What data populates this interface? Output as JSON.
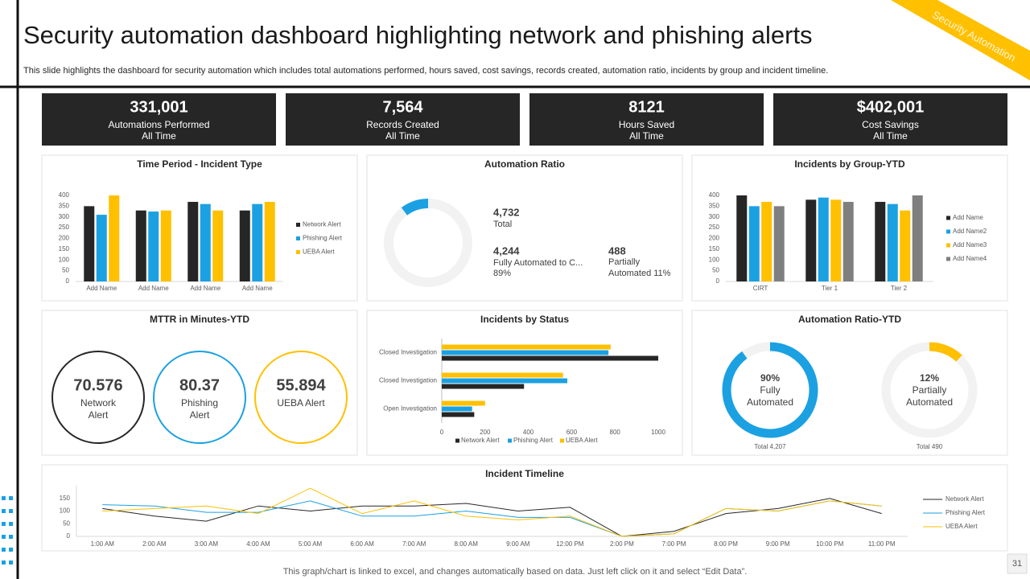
{
  "header": {
    "title": "Security automation dashboard highlighting network and phishing alerts",
    "subtitle": "This slide highlights the dashboard for security automation which includes total automations performed, hours saved, cost savings, records created, automation ratio, incidents by group and incident timeline.",
    "tag": "Security Automation"
  },
  "kpis": [
    {
      "value": "331,001",
      "label": "Automations Performed",
      "period": "All Time"
    },
    {
      "value": "7,564",
      "label": "Records Created",
      "period": "All Time"
    },
    {
      "value": "8121",
      "label": "Hours Saved",
      "period": "All Time"
    },
    {
      "value": "$402,001",
      "label": "Cost Savings",
      "period": "All Time"
    }
  ],
  "chart_data": [
    {
      "type": "bar",
      "title": "Time Period - Incident Type",
      "categories": [
        "Add Name",
        "Add Name",
        "Add Name",
        "Add Name"
      ],
      "series": [
        {
          "name": "Network Alert",
          "color": "#262626",
          "values": [
            350,
            330,
            370,
            330
          ]
        },
        {
          "name": "Phishing Alert",
          "color": "#1ba1e2",
          "values": [
            310,
            325,
            360,
            360
          ]
        },
        {
          "name": "UEBA Alert",
          "color": "#ffc000",
          "values": [
            400,
            330,
            330,
            370
          ]
        }
      ],
      "ylim": [
        0,
        400
      ],
      "yticks": [
        0,
        50,
        100,
        150,
        200,
        250,
        300,
        350,
        400
      ],
      "legend": "right"
    },
    {
      "type": "donut",
      "title": "Automation Ratio",
      "total": {
        "value": 4732,
        "label": "4,732"
      },
      "total_caption": "Total",
      "categories": [
        "Fully Automated to C...",
        "Partially Automated 11%"
      ],
      "values": [
        4244,
        488
      ],
      "value_labels": [
        "4,244",
        "488"
      ],
      "share_label": "89%",
      "colors": [
        "#f2f2f2",
        "#1ba1e2"
      ]
    },
    {
      "type": "bar",
      "title": "Incidents by Group-YTD",
      "categories": [
        "CIRT",
        "Tier 1",
        "Tier 2"
      ],
      "series": [
        {
          "name": "Add Name",
          "color": "#262626",
          "values": [
            400,
            380,
            370
          ]
        },
        {
          "name": "Add Name2",
          "color": "#1ba1e2",
          "values": [
            350,
            390,
            360
          ]
        },
        {
          "name": "Add Name3",
          "color": "#ffc000",
          "values": [
            370,
            380,
            330
          ]
        },
        {
          "name": "Add Name4",
          "color": "#7f7f7f",
          "values": [
            350,
            370,
            400
          ]
        }
      ],
      "ylim": [
        0,
        400
      ],
      "yticks": [
        0,
        50,
        100,
        150,
        200,
        250,
        300,
        350,
        400
      ],
      "legend": "right"
    },
    {
      "type": "circles",
      "title": "MTTR in Minutes-YTD",
      "categories": [
        "Network Alert",
        "Phishing Alert",
        "UEBA Alert"
      ],
      "values": [
        70.576,
        80.37,
        55.894
      ],
      "colors": [
        "#262626",
        "#1ba1e2",
        "#ffc000"
      ]
    },
    {
      "type": "hbar",
      "title": "Incidents by Status",
      "categories": [
        "Closed Investigation",
        "Closed Investigation",
        "Open Investigation"
      ],
      "series": [
        {
          "name": "Network Alert",
          "color": "#262626",
          "values": [
            1000,
            380,
            150
          ]
        },
        {
          "name": "Phishing Alert",
          "color": "#1ba1e2",
          "values": [
            770,
            580,
            140
          ]
        },
        {
          "name": "UEBA Alert",
          "color": "#ffc000",
          "values": [
            780,
            560,
            200
          ]
        }
      ],
      "xlim": [
        0,
        1000
      ],
      "xticks": [
        0,
        200,
        400,
        600,
        800,
        1000
      ],
      "legend": "bottom"
    },
    {
      "type": "gauges",
      "title": "Automation Ratio-YTD",
      "categories": [
        "Fully Automated",
        "Partially Automated"
      ],
      "values": [
        90,
        12
      ],
      "value_labels": [
        "90%",
        "12%"
      ],
      "totals": [
        "Total 4,207",
        "Total 490"
      ],
      "colors": [
        "#1ba1e2",
        "#ffc000"
      ],
      "ylim": [
        0,
        100
      ]
    },
    {
      "type": "line",
      "title": "Incident Timeline",
      "categories": [
        "1:00 AM",
        "2:00 AM",
        "3:00 AM",
        "4:00 AM",
        "5:00 AM",
        "6:00 AM",
        "7:00 AM",
        "8:00 AM",
        "9:00 AM",
        "12:00 PM",
        "2:00 PM",
        "7:00 PM",
        "8:00 PM",
        "9:00 PM",
        "10:00 PM",
        "11:00 PM"
      ],
      "series": [
        {
          "name": "Network Alert",
          "color": "#262626",
          "values": [
            110,
            80,
            60,
            120,
            100,
            120,
            120,
            130,
            100,
            115,
            0,
            20,
            90,
            110,
            150,
            90
          ]
        },
        {
          "name": "Phishing Alert",
          "color": "#1ba1e2",
          "values": [
            125,
            120,
            95,
            95,
            140,
            80,
            80,
            100,
            75,
            75,
            0,
            10,
            110,
            100,
            140,
            120
          ]
        },
        {
          "name": "UEBA Alert",
          "color": "#ffc000",
          "values": [
            100,
            110,
            120,
            90,
            190,
            90,
            140,
            80,
            65,
            80,
            0,
            10,
            110,
            100,
            140,
            120
          ]
        }
      ],
      "ylim": [
        0,
        200
      ],
      "yticks": [
        0,
        50,
        100,
        150
      ],
      "legend": "right"
    }
  ],
  "footer": {
    "note": "This graph/chart is linked to excel, and changes automatically based on data. Just left click on it and select “Edit Data”.",
    "page": "31"
  }
}
